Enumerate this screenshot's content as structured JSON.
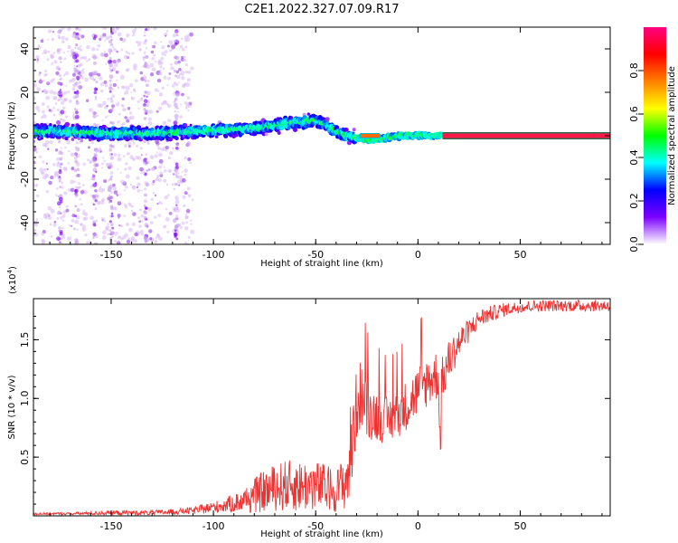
{
  "title": "C2E1.2022.327.07.09.R17",
  "chart_data": [
    {
      "type": "heatmap",
      "xlabel": "Height of straight line (km)",
      "ylabel": "Frequency (Hz)",
      "xlim": [
        -188,
        94
      ],
      "ylim": [
        -50,
        50
      ],
      "x_ticks": [
        -150,
        -100,
        -50,
        0,
        50
      ],
      "x_tick_labels": [
        "-150",
        "-100",
        "-50",
        "0",
        "50"
      ],
      "y_ticks": [
        -40,
        -20,
        0,
        20,
        40
      ],
      "y_tick_labels": [
        "-40",
        "-20",
        "0",
        "20",
        "40"
      ],
      "ridge_frequency_profile": {
        "x": [
          -188,
          -170,
          -150,
          -130,
          -110,
          -90,
          -75,
          -60,
          -50,
          -45,
          -40,
          -35,
          -30,
          -25,
          -20,
          -15,
          -10,
          -5,
          0,
          5,
          10,
          15,
          50,
          94
        ],
        "y": [
          2,
          2,
          1,
          1,
          2,
          3,
          4,
          6,
          7,
          5,
          2,
          0,
          -1,
          -2,
          -2,
          -1,
          0,
          0,
          0,
          0,
          0,
          0,
          0,
          0
        ]
      },
      "colorbar": {
        "label": "Normalized spectral amplitude",
        "range": [
          0,
          1
        ],
        "ticks": [
          0.0,
          0.2,
          0.4,
          0.6,
          0.8
        ],
        "tick_labels": [
          "0.0",
          "0.2",
          "0.4",
          "0.6",
          "0.8"
        ],
        "colors": [
          "#ffffff",
          "#7b00ff",
          "#0000ff",
          "#00ffff",
          "#00ff00",
          "#ffff00",
          "#ff7f00",
          "#ff0000",
          "#ff0080"
        ]
      }
    },
    {
      "type": "line",
      "xlabel": "Height of straight line (km)",
      "ylabel": "SNR (10 * v/v)",
      "y_multiplier_label": "(x10",
      "y_multiplier_exp": "4",
      "y_multiplier_close": ")",
      "xlim": [
        -188,
        94
      ],
      "ylim": [
        0,
        1.85
      ],
      "x_ticks": [
        -150,
        -100,
        -50,
        0,
        50
      ],
      "x_tick_labels": [
        "-150",
        "-100",
        "-50",
        "0",
        "50"
      ],
      "y_ticks": [
        0.5,
        1.0,
        1.5
      ],
      "y_tick_labels": [
        "0.5",
        "1.0",
        "1.5"
      ],
      "series": [
        {
          "color": "#ee3333",
          "x": [
            -188,
            -170,
            -150,
            -130,
            -110,
            -95,
            -85,
            -80,
            -75,
            -70,
            -65,
            -60,
            -55,
            -50,
            -45,
            -40,
            -35,
            -33,
            -30,
            -28,
            -25,
            -20,
            -15,
            -10,
            -5,
            0,
            5,
            10,
            11,
            12,
            15,
            20,
            25,
            30,
            40,
            50,
            60,
            70,
            80,
            94
          ],
          "y": [
            0.02,
            0.02,
            0.03,
            0.03,
            0.05,
            0.1,
            0.15,
            0.2,
            0.25,
            0.28,
            0.3,
            0.3,
            0.3,
            0.3,
            0.28,
            0.25,
            0.35,
            0.6,
            1.0,
            1.1,
            0.95,
            0.9,
            0.85,
            0.9,
            1.0,
            1.1,
            1.2,
            1.25,
            0.55,
            1.2,
            1.35,
            1.5,
            1.6,
            1.7,
            1.76,
            1.79,
            1.8,
            1.8,
            1.8,
            1.8
          ],
          "noise": [
            0.01,
            0.01,
            0.02,
            0.02,
            0.03,
            0.06,
            0.1,
            0.15,
            0.18,
            0.2,
            0.22,
            0.22,
            0.22,
            0.22,
            0.2,
            0.18,
            0.25,
            0.45,
            0.3,
            0.3,
            0.25,
            0.22,
            0.2,
            0.2,
            0.22,
            0.22,
            0.22,
            0.22,
            0.1,
            0.2,
            0.18,
            0.14,
            0.1,
            0.08,
            0.06,
            0.05,
            0.05,
            0.05,
            0.05,
            0.05
          ]
        }
      ]
    }
  ]
}
